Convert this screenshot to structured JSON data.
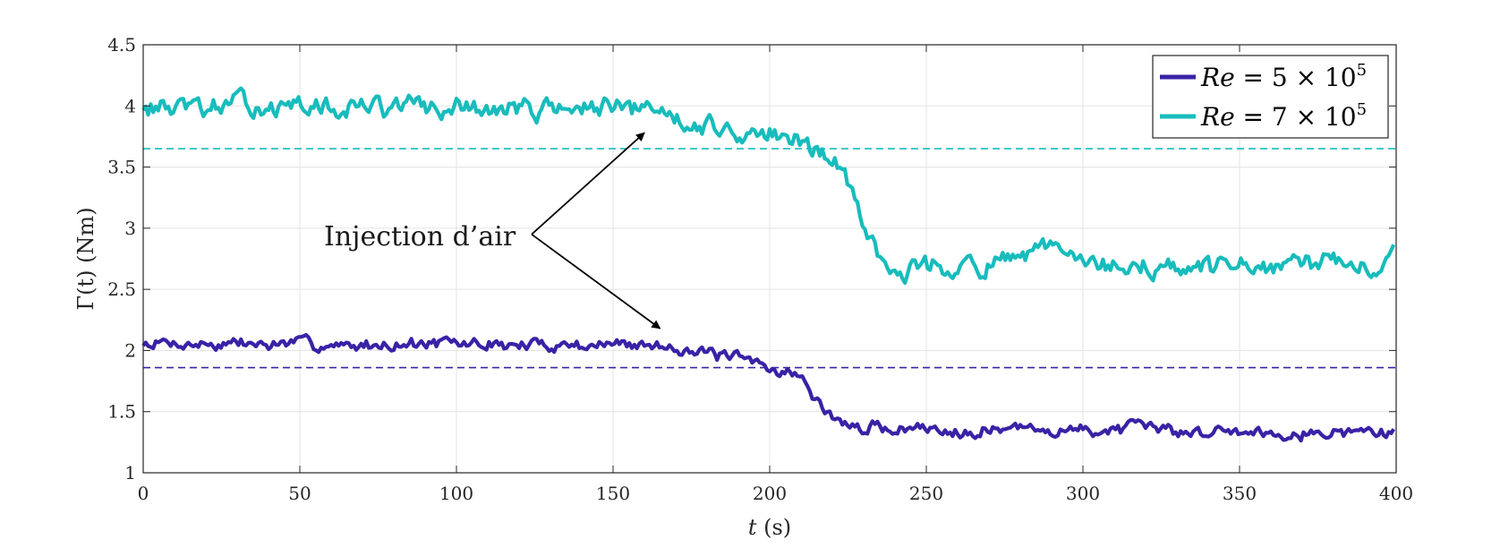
{
  "chart_data": {
    "type": "line",
    "title": "",
    "xlabel": {
      "italic": "t",
      "rest": " (s)"
    },
    "ylabel": "Γ(t) (Nm)",
    "xlim": [
      0,
      400
    ],
    "ylim": [
      1,
      4.5
    ],
    "xticks": [
      0,
      50,
      100,
      150,
      200,
      250,
      300,
      350,
      400
    ],
    "yticks": [
      1,
      1.5,
      2,
      2.5,
      3,
      3.5,
      4,
      4.5
    ],
    "grid": true,
    "legend_position": "top-right",
    "annotation": {
      "text": "Injection d’air",
      "arrow_targets": [
        {
          "x": 160,
          "y": 3.78
        },
        {
          "x": 165,
          "y": 2.18
        }
      ],
      "arrow_origin": {
        "x": 124,
        "y": 2.95
      }
    },
    "series": [
      {
        "name": "Re = 5 × 10^5",
        "legend_label": {
          "var": "Re",
          "eq": " = 5 × 10",
          "exp": "5"
        },
        "color": "#3a22a6",
        "threshold": 1.86,
        "profile": [
          [
            0,
            2.05
          ],
          [
            170,
            2.05
          ],
          [
            180,
            1.97
          ],
          [
            200,
            1.88
          ],
          [
            210,
            1.78
          ],
          [
            216,
            1.55
          ],
          [
            225,
            1.37
          ],
          [
            400,
            1.33
          ]
        ],
        "noise": 0.055,
        "seed": 7
      },
      {
        "name": "Re = 7 × 10^5",
        "legend_label": {
          "var": "Re",
          "eq": " = 7 × 10",
          "exp": "5"
        },
        "color": "#18bcbc",
        "threshold": 3.65,
        "profile": [
          [
            0,
            4.0
          ],
          [
            165,
            3.98
          ],
          [
            180,
            3.85
          ],
          [
            200,
            3.75
          ],
          [
            215,
            3.65
          ],
          [
            224,
            3.45
          ],
          [
            230,
            3.0
          ],
          [
            240,
            2.68
          ],
          [
            280,
            2.7
          ],
          [
            290,
            2.85
          ],
          [
            300,
            2.68
          ],
          [
            395,
            2.68
          ],
          [
            400,
            2.95
          ]
        ],
        "noise": 0.09,
        "seed": 13
      }
    ]
  }
}
